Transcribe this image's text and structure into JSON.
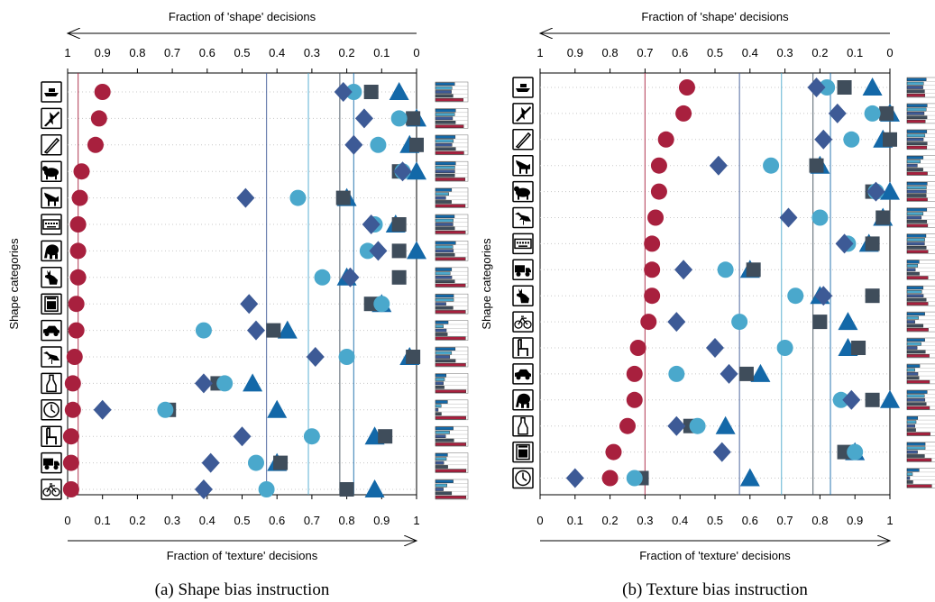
{
  "figure": {
    "colors": {
      "shape_bias_instruction": "#a8203e",
      "diamond": "#3d5a96",
      "circle": "#4aa8cc",
      "square": "#3f4d5b",
      "triangle": "#1368a8",
      "grid": "#c8c8c8"
    },
    "icons": [
      "boat-icon",
      "airplane-icon",
      "knife-icon",
      "bear-icon",
      "dog-icon",
      "keyboard-icon",
      "elephant-icon",
      "cat-icon",
      "oven-icon",
      "car-icon",
      "bird-icon",
      "bottle-icon",
      "clock-icon",
      "chair-icon",
      "truck-icon",
      "bicycle-icon"
    ]
  },
  "chart_data": [
    {
      "type": "scatter",
      "caption": "(a) Shape bias instruction",
      "xlabel_top": "Fraction of 'shape' decisions",
      "xlabel_bottom": "Fraction of 'texture' decisions",
      "ylabel": "Shape categories",
      "xlim": [
        0,
        1
      ],
      "top_ticks": [
        "1",
        "0.9",
        "0.8",
        "0.7",
        "0.6",
        "0.5",
        "0.4",
        "0.3",
        "0.2",
        "0.1",
        "0"
      ],
      "bottom_ticks": [
        "0",
        "0.1",
        "0.2",
        "0.3",
        "0.4",
        "0.5",
        "0.6",
        "0.7",
        "0.8",
        "0.9",
        "1"
      ],
      "categories": [
        "boat",
        "airplane",
        "knife",
        "bear",
        "dog",
        "keyboard",
        "elephant",
        "cat",
        "oven",
        "car",
        "bird",
        "bottle",
        "clock",
        "chair",
        "truck",
        "bicycle"
      ],
      "vlines": [
        {
          "x": 0.03,
          "color": "#a8203e"
        },
        {
          "x": 0.57,
          "color": "#3d5a96"
        },
        {
          "x": 0.69,
          "color": "#4aa8cc"
        },
        {
          "x": 0.78,
          "color": "#3f4d5b"
        },
        {
          "x": 0.82,
          "color": "#1368a8"
        }
      ],
      "series": [
        {
          "marker": "circle",
          "color": "#a8203e",
          "values": [
            0.1,
            0.09,
            0.08,
            0.04,
            0.035,
            0.03,
            0.03,
            0.03,
            0.025,
            0.025,
            0.02,
            0.015,
            0.015,
            0.01,
            0.01,
            0.01
          ]
        },
        {
          "marker": "diamond",
          "color": "#3d5a96",
          "values": [
            0.79,
            0.85,
            0.82,
            0.96,
            0.51,
            0.87,
            0.89,
            0.81,
            0.52,
            0.54,
            0.71,
            0.39,
            0.1,
            0.5,
            0.41,
            0.39
          ]
        },
        {
          "marker": "circle",
          "color": "#4aa8cc",
          "values": [
            0.82,
            0.95,
            0.89,
            0.96,
            0.66,
            0.88,
            0.86,
            0.73,
            0.9,
            0.39,
            0.8,
            0.45,
            0.28,
            0.7,
            0.54,
            0.57
          ]
        },
        {
          "marker": "square",
          "color": "#3f4d5b",
          "values": [
            0.87,
            0.99,
            1.0,
            0.95,
            0.79,
            0.95,
            0.95,
            0.95,
            0.87,
            0.59,
            0.99,
            0.43,
            0.29,
            0.91,
            0.61,
            0.8
          ]
        },
        {
          "marker": "triangle",
          "color": "#1368a8",
          "values": [
            0.95,
            1.0,
            0.98,
            1.0,
            0.8,
            0.94,
            1.0,
            0.8,
            0.9,
            0.63,
            0.98,
            0.53,
            0.6,
            0.88,
            0.6,
            0.88
          ]
        }
      ]
    },
    {
      "type": "scatter",
      "caption": "(b) Texture bias instruction",
      "xlabel_top": "Fraction of 'shape' decisions",
      "xlabel_bottom": "Fraction of 'texture' decisions",
      "ylabel": "Shape categories",
      "xlim": [
        0,
        1
      ],
      "top_ticks": [
        "1",
        "0.9",
        "0.8",
        "0.7",
        "0.6",
        "0.5",
        "0.4",
        "0.3",
        "0.2",
        "0.1",
        "0"
      ],
      "bottom_ticks": [
        "0",
        "0.1",
        "0.2",
        "0.3",
        "0.4",
        "0.5",
        "0.6",
        "0.7",
        "0.8",
        "0.9",
        "1"
      ],
      "categories": [
        "boat",
        "airplane",
        "knife",
        "dog",
        "bear",
        "bird",
        "keyboard",
        "truck",
        "cat",
        "bicycle",
        "chair",
        "car",
        "elephant",
        "bottle",
        "oven",
        "clock"
      ],
      "vlines": [
        {
          "x": 0.3,
          "color": "#a8203e"
        },
        {
          "x": 0.57,
          "color": "#3d5a96"
        },
        {
          "x": 0.69,
          "color": "#4aa8cc"
        },
        {
          "x": 0.78,
          "color": "#3f4d5b"
        },
        {
          "x": 0.83,
          "color": "#1368a8"
        }
      ],
      "series": [
        {
          "marker": "circle",
          "color": "#a8203e",
          "values": [
            0.42,
            0.41,
            0.36,
            0.34,
            0.34,
            0.33,
            0.32,
            0.32,
            0.32,
            0.31,
            0.28,
            0.27,
            0.27,
            0.25,
            0.21,
            0.2
          ]
        },
        {
          "marker": "diamond",
          "color": "#3d5a96",
          "values": [
            0.79,
            0.85,
            0.81,
            0.51,
            0.96,
            0.71,
            0.87,
            0.41,
            0.81,
            0.39,
            0.5,
            0.54,
            0.89,
            0.39,
            0.52,
            0.1
          ]
        },
        {
          "marker": "circle",
          "color": "#4aa8cc",
          "values": [
            0.82,
            0.95,
            0.89,
            0.66,
            0.96,
            0.8,
            0.88,
            0.53,
            0.73,
            0.57,
            0.7,
            0.39,
            0.86,
            0.45,
            0.9,
            0.27
          ]
        },
        {
          "marker": "square",
          "color": "#3f4d5b",
          "values": [
            0.87,
            0.99,
            1.0,
            0.79,
            0.95,
            0.98,
            0.95,
            0.61,
            0.95,
            0.8,
            0.91,
            0.59,
            0.95,
            0.43,
            0.87,
            0.29
          ]
        },
        {
          "marker": "triangle",
          "color": "#1368a8",
          "values": [
            0.95,
            1.0,
            0.98,
            0.8,
            1.0,
            0.98,
            0.94,
            0.6,
            0.8,
            0.88,
            0.88,
            0.63,
            1.0,
            0.53,
            0.9,
            0.6
          ]
        }
      ]
    }
  ]
}
